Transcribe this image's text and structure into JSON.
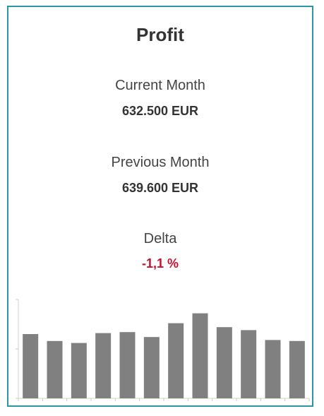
{
  "kpi": {
    "title": "Profit",
    "current_label": "Current Month",
    "current_value": "632.500 EUR",
    "previous_label": "Previous Month",
    "previous_value": "639.600 EUR",
    "delta_label": "Delta",
    "delta_value": "-1,1 %",
    "delta_color": "#c8102e",
    "border_color": "#2a97a2"
  },
  "chart_data": {
    "type": "bar",
    "values": [
      65,
      58,
      56,
      66,
      67,
      62,
      76,
      86,
      72,
      69,
      59,
      58
    ],
    "color": "#808080",
    "ylim": [
      0,
      100
    ],
    "grid": false
  }
}
